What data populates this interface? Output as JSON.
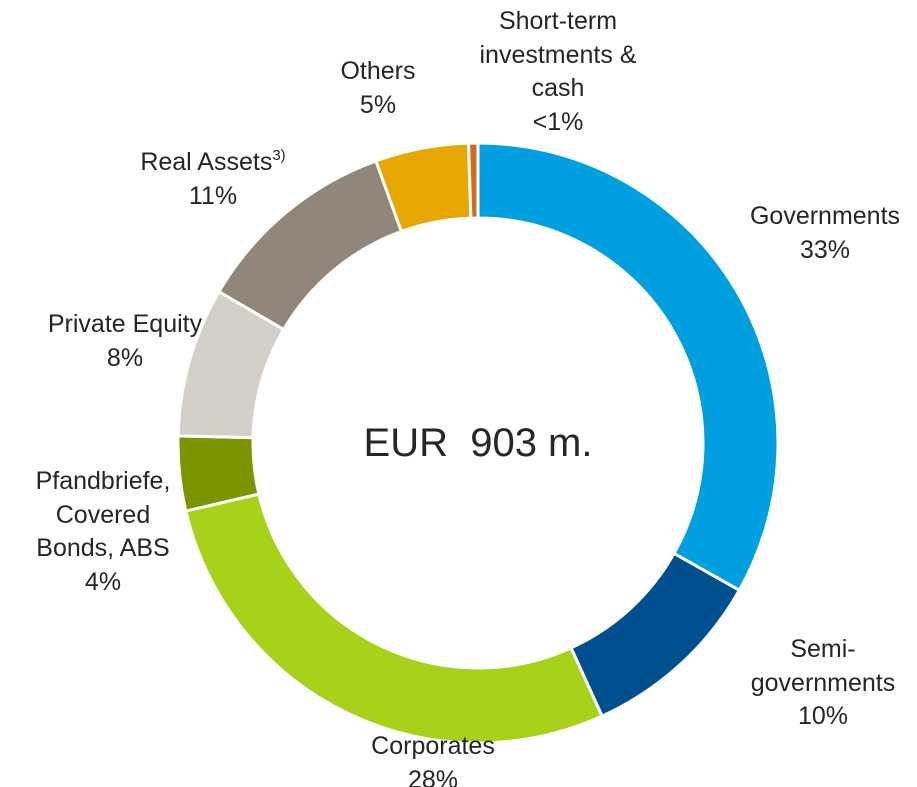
{
  "chart_data": {
    "type": "donut",
    "center_label": "EUR  903 m.",
    "categories": [
      "Governments",
      "Semi-governments",
      "Corporates",
      "Pfandbriefe, Covered Bonds, ABS",
      "Private Equity",
      "Real Assets",
      "Others",
      "Short-term investments & cash"
    ],
    "footnote_marks": [
      null,
      null,
      null,
      null,
      null,
      "3)",
      null,
      null
    ],
    "values": [
      33,
      10,
      28,
      4,
      8,
      11,
      5,
      0.5
    ],
    "value_labels": [
      "33%",
      "10%",
      "28%",
      "4%",
      "8%",
      "11%",
      "5%",
      "<1%"
    ],
    "colors": [
      "#009fdf",
      "#00508f",
      "#a8d21a",
      "#7a9500",
      "#d4d0c9",
      "#918679",
      "#e6a800",
      "#d66a1e"
    ]
  }
}
